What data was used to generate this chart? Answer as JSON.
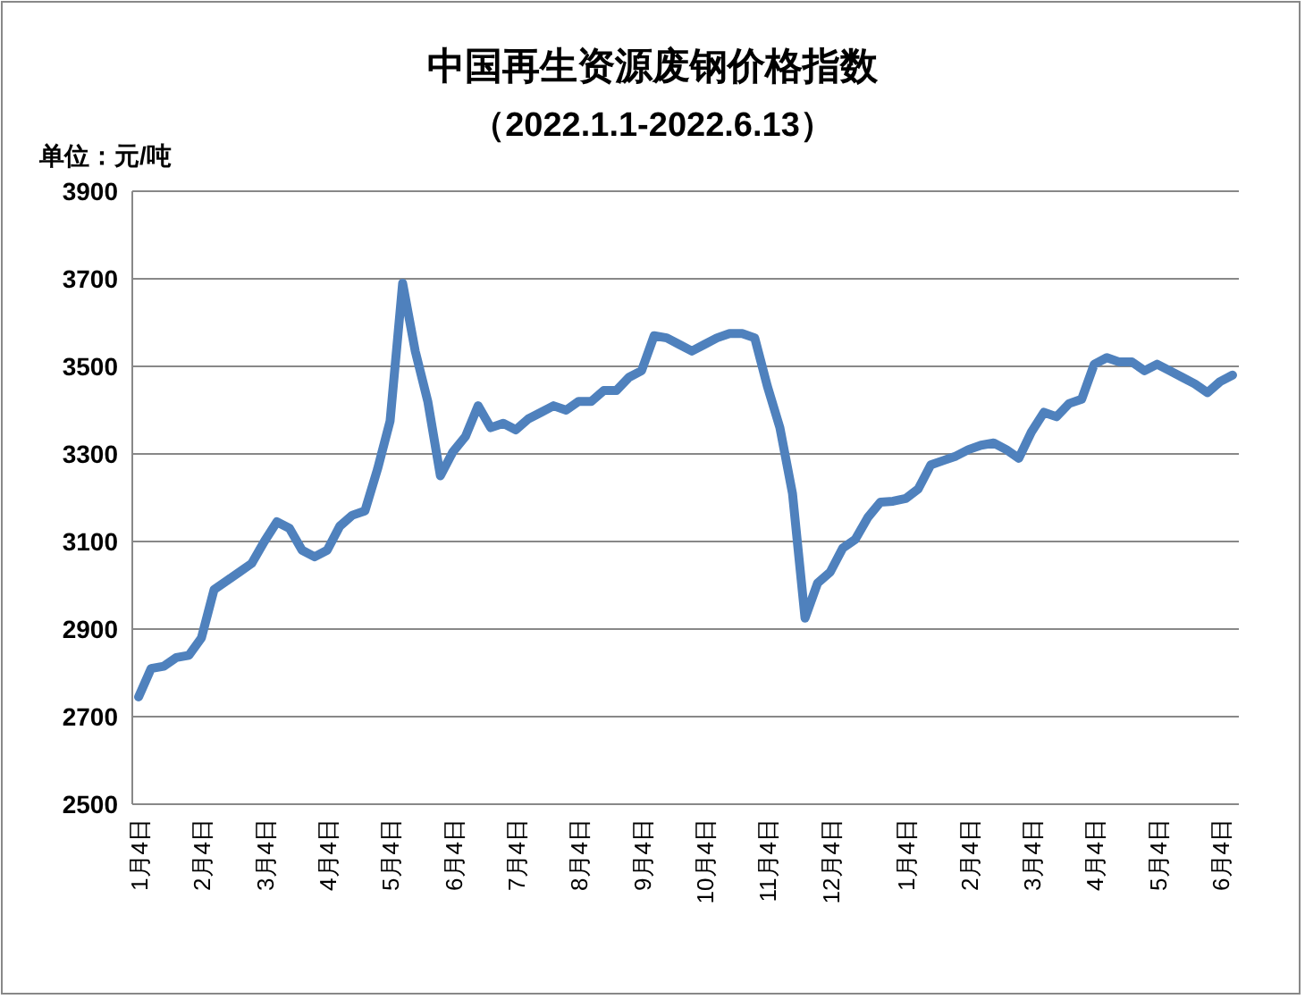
{
  "chart_data": {
    "type": "line",
    "title": "中国再生资源废钢价格指数",
    "subtitle": "（2022.1.1-2022.6.13）",
    "ylabel": "单位：元/吨",
    "categories": [
      "1月4日",
      null,
      null,
      null,
      null,
      "2月4日",
      null,
      null,
      null,
      null,
      "3月4日",
      null,
      null,
      null,
      null,
      "4月4日",
      null,
      null,
      null,
      null,
      "5月4日",
      null,
      null,
      null,
      null,
      "6月4日",
      null,
      null,
      null,
      null,
      "7月4日",
      null,
      null,
      null,
      null,
      "8月4日",
      null,
      null,
      null,
      null,
      "9月4日",
      null,
      null,
      null,
      null,
      "10月4日",
      null,
      null,
      null,
      null,
      "11月4日",
      null,
      null,
      null,
      null,
      "12月4日",
      null,
      null,
      null,
      null,
      null,
      "1月4日",
      null,
      null,
      null,
      null,
      "2月4日",
      null,
      null,
      null,
      null,
      "3月4日",
      null,
      null,
      null,
      null,
      "4月4日",
      null,
      null,
      null,
      null,
      "5月4日",
      null,
      null,
      null,
      null,
      "6月4日",
      null
    ],
    "values": [
      2745,
      2810,
      2815,
      2835,
      2840,
      2880,
      2990,
      3010,
      3030,
      3050,
      3100,
      3145,
      3130,
      3080,
      3065,
      3080,
      3135,
      3160,
      3170,
      3265,
      3375,
      3690,
      3535,
      3420,
      3250,
      3305,
      3340,
      3410,
      3360,
      3370,
      3355,
      3380,
      3395,
      3410,
      3400,
      3420,
      3420,
      3445,
      3445,
      3475,
      3490,
      3570,
      3565,
      3550,
      3535,
      3550,
      3565,
      3575,
      3575,
      3565,
      3455,
      3360,
      3210,
      2925,
      3005,
      3030,
      3085,
      3105,
      3155,
      3190,
      3192,
      3198,
      3220,
      3275,
      3285,
      3295,
      3310,
      3320,
      3325,
      3310,
      3290,
      3350,
      3395,
      3385,
      3415,
      3425,
      3505,
      3520,
      3510,
      3510,
      3490,
      3505,
      3490,
      3475,
      3460,
      3440,
      3465,
      3480
    ],
    "color": "#4f81bd",
    "ylim": [
      2500,
      3900
    ],
    "yticks": [
      2500,
      2700,
      2900,
      3100,
      3300,
      3500,
      3700,
      3900
    ],
    "grid": "y"
  }
}
